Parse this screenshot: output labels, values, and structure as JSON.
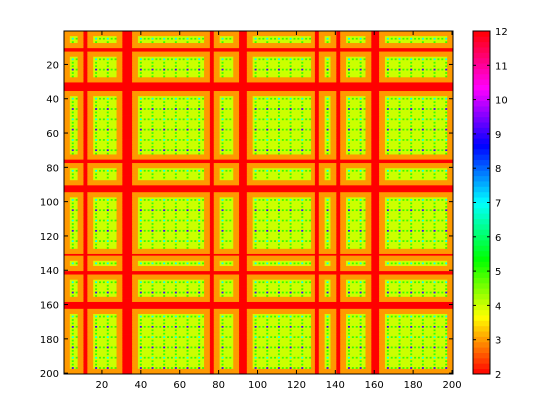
{
  "chart_data": {
    "type": "heatmap",
    "title": "",
    "xlabel": "",
    "ylabel": "",
    "xlim": [
      1,
      200
    ],
    "ylim": [
      1,
      200
    ],
    "y_reversed": true,
    "xticks": [
      20,
      40,
      60,
      80,
      100,
      120,
      140,
      160,
      180,
      200
    ],
    "yticks": [
      20,
      40,
      60,
      80,
      100,
      120,
      140,
      160,
      180,
      200
    ],
    "grid": false,
    "colorbar": {
      "colormap": "hsv",
      "range": [
        2,
        12
      ],
      "ticks": [
        2,
        3,
        4,
        5,
        6,
        7,
        8,
        9,
        10,
        11,
        12
      ]
    },
    "structure": {
      "description_of_values": "recursive block pattern of integer values 2-12",
      "outer_blocks": [
        [
          1,
          10
        ],
        [
          13,
          30
        ],
        [
          36,
          75
        ],
        [
          78,
          90
        ],
        [
          95,
          130
        ],
        [
          132,
          140
        ],
        [
          143,
          158
        ],
        [
          163,
          200
        ]
      ],
      "border_value": 2,
      "margin_value": 3,
      "inner_value": 4,
      "line_value": 5,
      "dot_values": [
        7,
        9
      ]
    }
  },
  "colors": {
    "background": "#ffffff",
    "axes_color": "#000000"
  }
}
